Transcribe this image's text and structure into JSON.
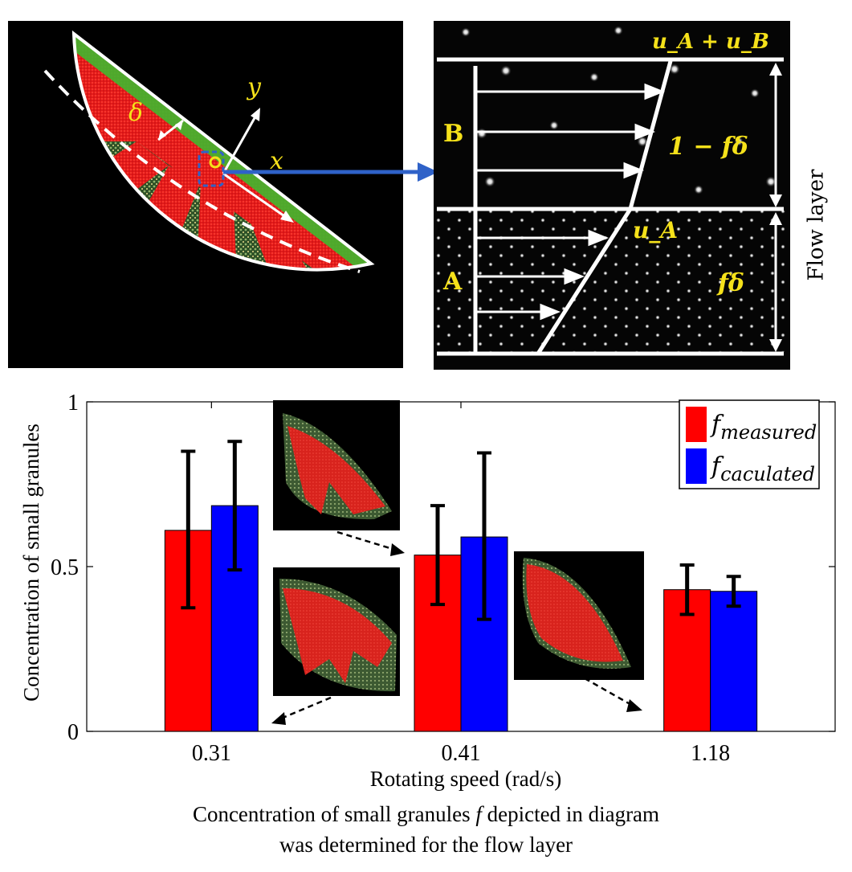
{
  "diagram": {
    "drum_labels": {
      "delta": "δ",
      "y_axis": "y",
      "x_axis": "x"
    },
    "profile_labels": {
      "top_velocity": "u_A + u_B",
      "layer_b": "B",
      "layer_a": "A",
      "layer_b_fraction": "1 − fδ",
      "layer_a_velocity": "u_A",
      "layer_a_fraction": "fδ",
      "flow_layer": "Flow layer"
    },
    "colors": {
      "red_granules": "#e8141c",
      "green_granules": "#3d6b2f",
      "label_yellow": "#f5e11a",
      "arrow_blue": "#2f62c8"
    }
  },
  "chart_data": {
    "type": "bar",
    "categories": [
      "0.31",
      "0.41",
      "1.18"
    ],
    "series": [
      {
        "name": "f_measured",
        "color": "#ff0000",
        "values": [
          0.61,
          0.535,
          0.43
        ],
        "err_low": [
          0.375,
          0.385,
          0.355
        ],
        "err_high": [
          0.85,
          0.685,
          0.505
        ]
      },
      {
        "name": "f_caculated",
        "color": "#0000ff",
        "values": [
          0.685,
          0.59,
          0.425
        ],
        "err_low": [
          0.49,
          0.34,
          0.38
        ],
        "err_high": [
          0.88,
          0.845,
          0.47
        ]
      }
    ],
    "xlabel": "Rotating speed (rad/s)",
    "ylabel": "Concentration of small granules",
    "ylim": [
      0,
      1
    ],
    "yticks": [
      "0",
      "0.5",
      "1"
    ],
    "grid": false,
    "legend_position": "top-right",
    "legend": [
      {
        "base": "f",
        "sub": "measured"
      },
      {
        "base": "f",
        "sub": "caculated"
      }
    ]
  },
  "caption": {
    "line1_before": "Concentration of small granules ",
    "line1_symbol": "f",
    "line1_after": " depicted in  diagram",
    "line2": "was determined for the flow layer"
  }
}
